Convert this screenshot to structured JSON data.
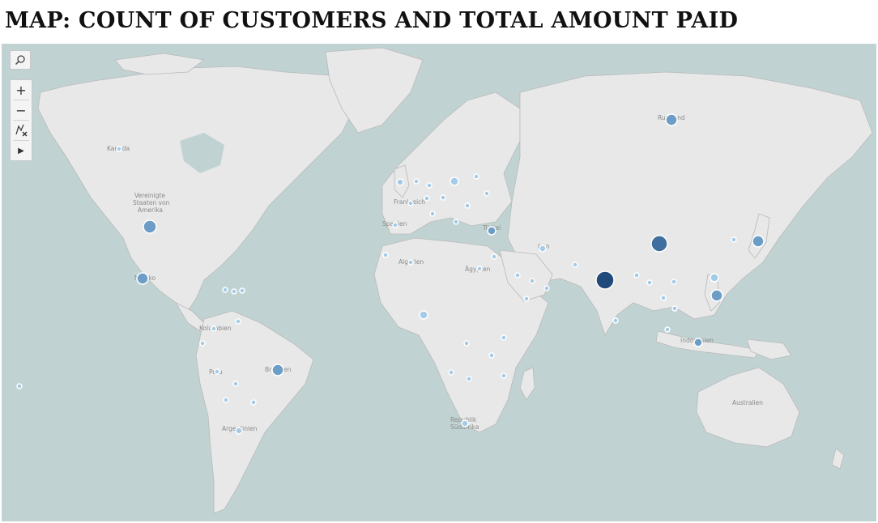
{
  "title": "MAP: COUNT OF CUSTOMERS AND TOTAL AMOUNT PAID",
  "toolbar": {
    "search_icon": "search-icon",
    "zoom_in_label": "+",
    "zoom_out_label": "−",
    "reset_icon": "pin-reset-icon",
    "expand_label": "▶"
  },
  "colors": {
    "water": "#c0d3d2",
    "land": "#e8e8e8",
    "small": "#a3cbe8",
    "medium": "#6c9dc6",
    "large": "#3e6f9e",
    "largest": "#1f4a7a"
  },
  "country_labels": [
    "Kanada",
    "Vereinigte",
    "Staaten von",
    "Amerika",
    "Mexiko",
    "Kolumbien",
    "Peru",
    "Brasilien",
    "Argentinien",
    "Frankreich",
    "Spanien",
    "Algerien",
    "Ägypten",
    "Türkei",
    "Iran",
    "Russland",
    "Indonesien",
    "Republik",
    "Südafrika",
    "Australien"
  ]
}
